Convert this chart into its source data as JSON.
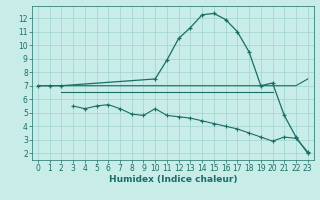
{
  "bg_color": "#c8ece8",
  "grid_color": "#a0d4d0",
  "line_color": "#1a6e66",
  "xlabel": "Humidex (Indice chaleur)",
  "xlim": [
    -0.5,
    23.5
  ],
  "ylim": [
    1.5,
    12.9
  ],
  "yticks": [
    2,
    3,
    4,
    5,
    6,
    7,
    8,
    9,
    10,
    11,
    12
  ],
  "xticks": [
    0,
    1,
    2,
    3,
    4,
    5,
    6,
    7,
    8,
    9,
    10,
    11,
    12,
    13,
    14,
    15,
    16,
    17,
    18,
    19,
    20,
    21,
    22,
    23
  ],
  "line1_x": [
    0,
    1,
    2,
    10,
    11,
    12,
    13,
    14,
    15,
    16,
    17,
    18,
    19,
    20,
    21,
    22,
    23
  ],
  "line1_y": [
    7.0,
    7.0,
    7.0,
    7.5,
    8.9,
    10.5,
    11.3,
    12.25,
    12.35,
    11.9,
    11.0,
    9.5,
    7.0,
    7.2,
    4.8,
    3.2,
    2.0
  ],
  "line2_x": [
    0,
    1,
    2,
    3,
    4,
    5,
    6,
    7,
    8,
    9,
    10,
    11,
    12,
    13,
    14,
    15,
    16,
    17,
    18,
    19,
    20,
    21,
    22,
    23
  ],
  "line2_y": [
    7.0,
    7.0,
    7.0,
    7.0,
    7.0,
    7.0,
    7.0,
    7.0,
    7.0,
    7.0,
    7.0,
    7.0,
    7.0,
    7.0,
    7.0,
    7.0,
    7.0,
    7.0,
    7.0,
    7.0,
    7.0,
    7.0,
    7.0,
    7.5
  ],
  "line3_x": [
    2,
    3,
    4,
    5,
    6,
    7,
    8,
    9,
    10,
    11,
    12,
    13,
    14,
    15,
    16,
    17,
    18,
    19,
    20
  ],
  "line3_y": [
    6.5,
    6.5,
    6.5,
    6.5,
    6.5,
    6.5,
    6.5,
    6.5,
    6.5,
    6.5,
    6.5,
    6.5,
    6.5,
    6.5,
    6.5,
    6.5,
    6.5,
    6.5,
    6.5
  ],
  "line4_x": [
    3,
    4,
    5,
    6,
    7,
    8,
    9,
    10,
    11,
    12,
    13,
    14,
    15,
    16,
    17,
    18,
    19,
    20,
    21,
    22,
    23
  ],
  "line4_y": [
    5.5,
    5.3,
    5.5,
    5.6,
    5.3,
    4.9,
    4.8,
    5.3,
    4.8,
    4.7,
    4.6,
    4.4,
    4.2,
    4.0,
    3.8,
    3.5,
    3.2,
    2.9,
    3.2,
    3.1,
    2.1
  ],
  "tick_fontsize": 5.5,
  "xlabel_fontsize": 6.5,
  "lw_main": 0.9,
  "lw_flat": 0.8
}
